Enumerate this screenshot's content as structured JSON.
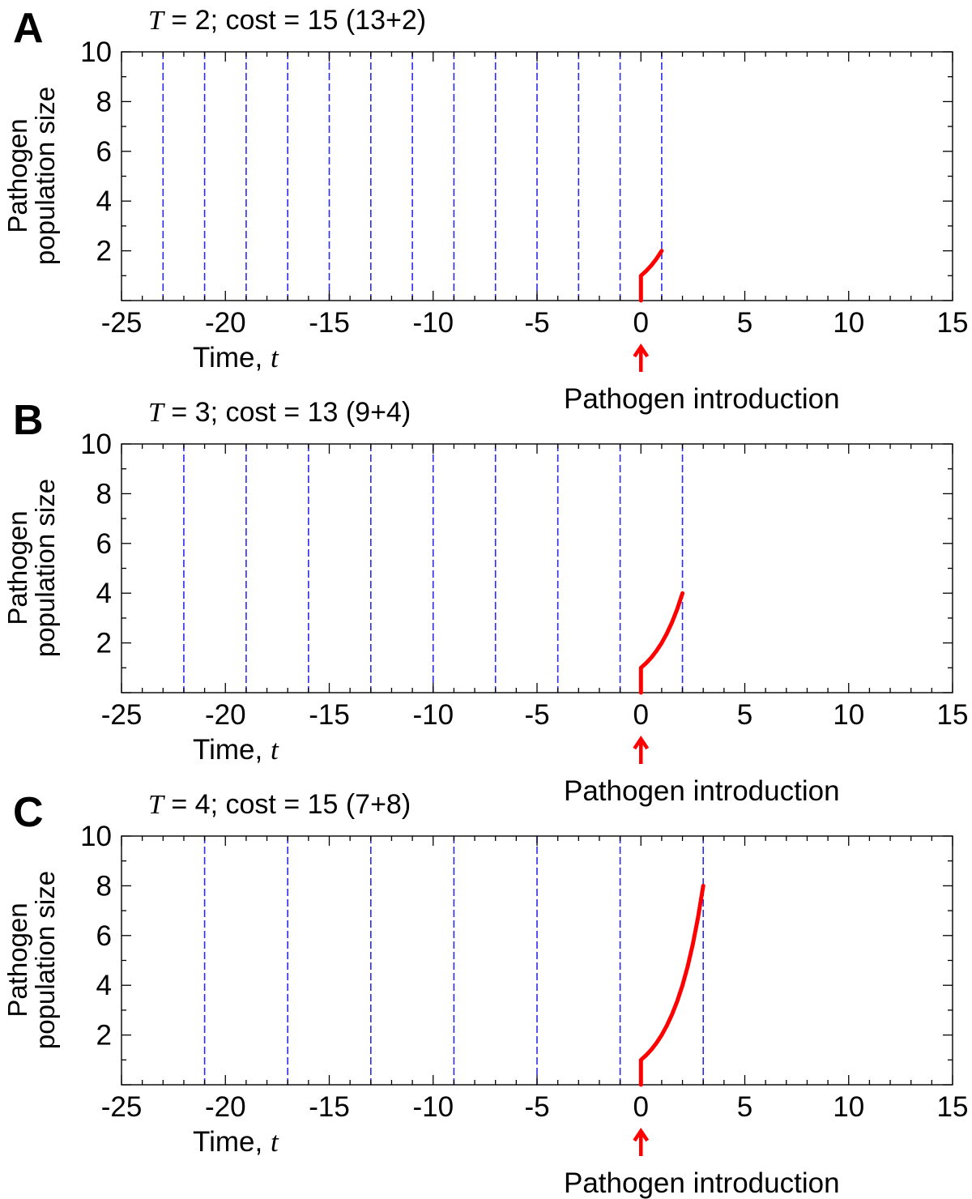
{
  "chart_data": [
    {
      "panel": "A",
      "type": "line",
      "title": {
        "var": "T",
        "rest": " = 2;  cost = 15 (13+2)"
      },
      "xlabel": {
        "text": "Time, ",
        "var": "t"
      },
      "ylabel": [
        "Pathogen",
        "population size"
      ],
      "xlim": [
        -25,
        15
      ],
      "ylim": [
        0,
        10
      ],
      "xticks": [
        -25,
        -20,
        -15,
        -10,
        -5,
        0,
        5,
        10,
        15
      ],
      "yticks": [
        2,
        4,
        6,
        8,
        10
      ],
      "grid": false,
      "dashed_lines_x": [
        -23,
        -21,
        -19,
        -17,
        -15,
        -13,
        -11,
        -9,
        -7,
        -5,
        -3,
        -1,
        1
      ],
      "dashed_color": "#2a2af0",
      "series_color": "#ff0000",
      "series": [
        {
          "x": [
            0,
            0,
            0.25,
            0.5,
            0.75,
            1
          ],
          "y": [
            0,
            1,
            1.19,
            1.41,
            1.68,
            2
          ]
        }
      ],
      "annotation": "Pathogen introduction",
      "annotation_x": 0
    },
    {
      "panel": "B",
      "type": "line",
      "title": {
        "var": "T",
        "rest": " = 3;  cost = 13 (9+4)"
      },
      "xlabel": {
        "text": "Time, ",
        "var": "t"
      },
      "ylabel": [
        "Pathogen",
        "population size"
      ],
      "xlim": [
        -25,
        15
      ],
      "ylim": [
        0,
        10
      ],
      "xticks": [
        -25,
        -20,
        -15,
        -10,
        -5,
        0,
        5,
        10,
        15
      ],
      "yticks": [
        2,
        4,
        6,
        8,
        10
      ],
      "grid": false,
      "dashed_lines_x": [
        -22,
        -19,
        -16,
        -13,
        -10,
        -7,
        -4,
        -1,
        2
      ],
      "dashed_color": "#2a2af0",
      "series_color": "#ff0000",
      "series": [
        {
          "x": [
            0,
            0,
            0.25,
            0.5,
            0.75,
            1,
            1.25,
            1.5,
            1.75,
            2
          ],
          "y": [
            0,
            1,
            1.19,
            1.41,
            1.68,
            2,
            2.38,
            2.83,
            3.36,
            4
          ]
        }
      ],
      "annotation": "Pathogen introduction",
      "annotation_x": 0
    },
    {
      "panel": "C",
      "type": "line",
      "title": {
        "var": "T",
        "rest": " = 4;  cost = 15 (7+8)"
      },
      "xlabel": {
        "text": "Time, ",
        "var": "t"
      },
      "ylabel": [
        "Pathogen",
        "population size"
      ],
      "xlim": [
        -25,
        15
      ],
      "ylim": [
        0,
        10
      ],
      "xticks": [
        -25,
        -20,
        -15,
        -10,
        -5,
        0,
        5,
        10,
        15
      ],
      "yticks": [
        2,
        4,
        6,
        8,
        10
      ],
      "grid": false,
      "dashed_lines_x": [
        -21,
        -17,
        -13,
        -9,
        -5,
        -1,
        3
      ],
      "dashed_color": "#2a2af0",
      "series_color": "#ff0000",
      "series": [
        {
          "x": [
            0,
            0,
            0.25,
            0.5,
            0.75,
            1,
            1.25,
            1.5,
            1.75,
            2,
            2.25,
            2.5,
            2.75,
            3
          ],
          "y": [
            0,
            1,
            1.19,
            1.41,
            1.68,
            2,
            2.38,
            2.83,
            3.36,
            4,
            4.76,
            5.66,
            6.73,
            8
          ]
        }
      ],
      "annotation": "Pathogen introduction",
      "annotation_x": 0
    }
  ]
}
